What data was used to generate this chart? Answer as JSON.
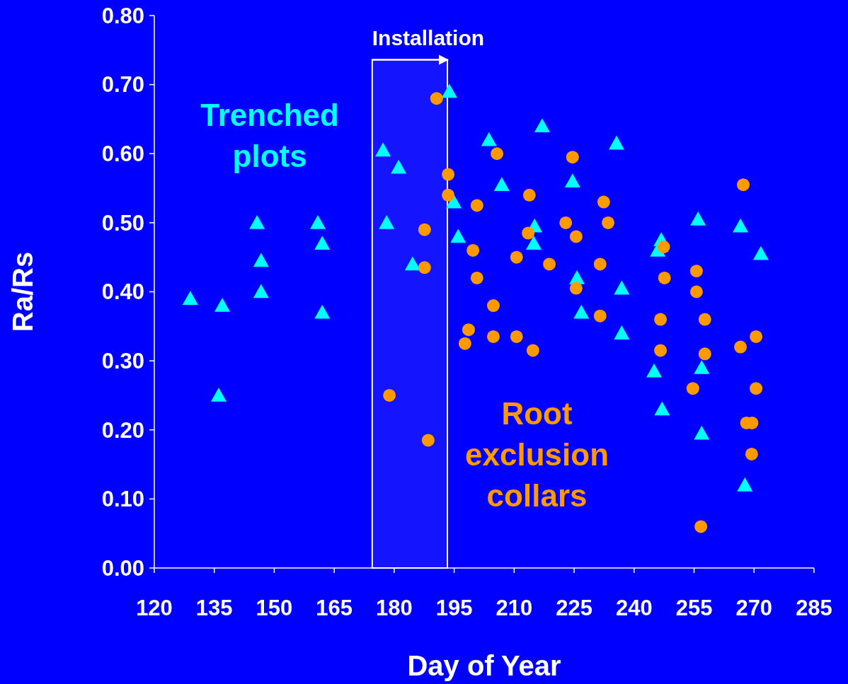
{
  "chart_data": {
    "type": "scatter",
    "xlabel": "Day of Year",
    "ylabel": "Ra/Rs",
    "xlim": [
      120,
      285
    ],
    "ylim": [
      0,
      0.8
    ],
    "xticks": [
      120,
      135,
      150,
      165,
      180,
      195,
      210,
      225,
      240,
      255,
      270,
      285
    ],
    "yticks": [
      {
        "value": 0,
        "label": "0.00"
      },
      {
        "value": 0.1,
        "label": "0.10"
      },
      {
        "value": 0.2,
        "label": "0.20"
      },
      {
        "value": 0.3,
        "label": "0.30"
      },
      {
        "value": 0.4,
        "label": "0.40"
      },
      {
        "value": 0.5,
        "label": "0.50"
      },
      {
        "value": 0.6,
        "label": "0.60"
      },
      {
        "value": 0.7,
        "label": "0.70"
      },
      {
        "value": 0.8,
        "label": "0.80"
      }
    ],
    "grid": false,
    "legend": false,
    "bands": [
      {
        "axis": "x",
        "from": 174.5,
        "to": 193.3,
        "label": "Installation",
        "color": "#ffffff"
      }
    ],
    "series": [
      {
        "name": "Trenched plots",
        "color": "#00ffff",
        "marker": "triangle",
        "x": [
          129,
          137,
          136.1,
          145.7,
          146.7,
          146.7,
          160.9,
          162,
          162,
          177.2,
          178.1,
          181.1,
          184.6,
          193.8,
          194.9,
          196,
          203.7,
          206.9,
          215.1,
          214.9,
          217,
          224.6,
          225.7,
          226.8,
          235.6,
          236.9,
          236.9,
          245,
          246.8,
          245.9,
          247,
          256,
          256.9,
          256.9,
          266.6,
          267.7,
          271.7
        ],
        "values": [
          0.39,
          0.38,
          0.25,
          0.5,
          0.445,
          0.4,
          0.5,
          0.47,
          0.37,
          0.605,
          0.5,
          0.58,
          0.44,
          0.69,
          0.53,
          0.48,
          0.62,
          0.555,
          0.495,
          0.47,
          0.64,
          0.56,
          0.42,
          0.37,
          0.615,
          0.405,
          0.34,
          0.285,
          0.475,
          0.46,
          0.23,
          0.505,
          0.29,
          0.195,
          0.495,
          0.12,
          0.455
        ]
      },
      {
        "name": "Root exclusion collars",
        "color": "#ff9900",
        "marker": "circle",
        "x": [
          190.6,
          187.6,
          187.6,
          178.8,
          188.5,
          193.5,
          193.5,
          200.7,
          199.7,
          200.7,
          205.7,
          204.8,
          204.8,
          198.6,
          197.7,
          210.6,
          210.6,
          213.8,
          213.5,
          214.7,
          218.8,
          222.9,
          224.6,
          225.5,
          225.5,
          232.4,
          233.5,
          231.5,
          231.5,
          247.4,
          247.6,
          246.6,
          246.6,
          255.6,
          255.6,
          257.7,
          257.7,
          254.7,
          256.7,
          267.3,
          266.6,
          270.5,
          270.5,
          268.1,
          269.5,
          269.4
        ],
        "values": [
          0.68,
          0.49,
          0.435,
          0.25,
          0.185,
          0.57,
          0.54,
          0.525,
          0.46,
          0.42,
          0.6,
          0.38,
          0.335,
          0.345,
          0.325,
          0.45,
          0.335,
          0.54,
          0.485,
          0.315,
          0.44,
          0.5,
          0.595,
          0.48,
          0.405,
          0.53,
          0.5,
          0.44,
          0.365,
          0.465,
          0.42,
          0.36,
          0.315,
          0.43,
          0.4,
          0.36,
          0.31,
          0.26,
          0.06,
          0.555,
          0.32,
          0.335,
          0.26,
          0.21,
          0.21,
          0.165
        ]
      }
    ]
  }
}
